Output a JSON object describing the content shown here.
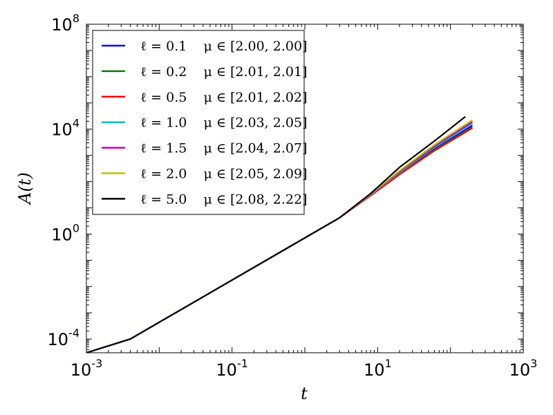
{
  "chart_data": {
    "type": "line",
    "xlabel": "t",
    "ylabel": "A(t)",
    "xscale": "log",
    "yscale": "log",
    "xlim": [
      0.001,
      1000
    ],
    "ylim": [
      3e-05,
      100000000
    ],
    "x_ticks": [
      {
        "value": 0.001,
        "base": "10",
        "exp": "-3"
      },
      {
        "value": 0.1,
        "base": "10",
        "exp": "-1"
      },
      {
        "value": 10,
        "base": "10",
        "exp": "1"
      },
      {
        "value": 1000,
        "base": "10",
        "exp": "3"
      }
    ],
    "y_ticks": [
      {
        "value": 0.0001,
        "base": "10",
        "exp": "-4"
      },
      {
        "value": 1,
        "base": "10",
        "exp": "0"
      },
      {
        "value": 10000,
        "base": "10",
        "exp": "4"
      },
      {
        "value": 100000000,
        "base": "10",
        "exp": "8"
      }
    ],
    "grid": false,
    "legend_position": "top-left",
    "series": [
      {
        "name": "ℓ = 0.1    μ ∈ [2.00, 2.00]",
        "color": "#0000ff",
        "x": [
          0.001,
          0.004,
          3,
          8,
          20,
          60,
          200
        ],
        "y": [
          3e-05,
          0.0001,
          4.2,
          30,
          200,
          1700,
          14000
        ]
      },
      {
        "name": "ℓ = 0.2    μ ∈ [2.01, 2.01]",
        "color": "#008000",
        "x": [
          0.001,
          0.004,
          3,
          8,
          20,
          60,
          200
        ],
        "y": [
          3e-05,
          0.0001,
          4.2,
          30,
          190,
          1600,
          12000
        ]
      },
      {
        "name": "ℓ = 0.5    μ ∈ [2.01, 2.02]",
        "color": "#ff0000",
        "x": [
          0.001,
          0.004,
          3,
          8,
          20,
          60,
          200
        ],
        "y": [
          3e-05,
          0.0001,
          4.2,
          29,
          185,
          1500,
          11000
        ]
      },
      {
        "name": "ℓ = 1.0    μ ∈ [2.03, 2.05]",
        "color": "#00bfbf",
        "x": [
          0.001,
          0.004,
          3,
          8,
          20,
          60,
          200
        ],
        "y": [
          3e-05,
          0.0001,
          4.2,
          31,
          220,
          2000,
          17000
        ]
      },
      {
        "name": "ℓ = 1.5    μ ∈ [2.04, 2.07]",
        "color": "#bf00bf",
        "x": [
          0.001,
          0.004,
          3,
          8,
          20,
          60,
          200
        ],
        "y": [
          3e-05,
          0.0001,
          4.2,
          32,
          240,
          2200,
          19000
        ]
      },
      {
        "name": "ℓ = 2.0    μ ∈ [2.05, 2.09]",
        "color": "#bfbf00",
        "x": [
          0.001,
          0.004,
          3,
          8,
          20,
          60,
          200
        ],
        "y": [
          3e-05,
          0.0001,
          4.2,
          33,
          260,
          2500,
          22000
        ]
      },
      {
        "name": "ℓ = 5.0    μ ∈ [2.08, 2.22]",
        "color": "#000000",
        "x": [
          0.001,
          0.004,
          3,
          8,
          20,
          60,
          160
        ],
        "y": [
          3e-05,
          0.0001,
          4.2,
          35,
          350,
          3500,
          30000
        ]
      }
    ]
  }
}
